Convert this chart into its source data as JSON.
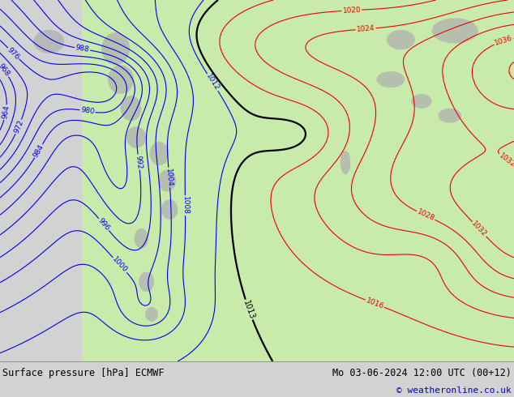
{
  "title_left": "Surface pressure [hPa] ECMWF",
  "title_right": "Mo 03-06-2024 12:00 UTC (00+12)",
  "copyright": "© weatheronline.co.uk",
  "bg_color": "#d2d2d2",
  "land_color": "#c8eaaa",
  "mountain_color": "#b0b0b0",
  "bar_color": "#d8d8d8",
  "blue_contour": "#0000ee",
  "red_contour": "#ee0000",
  "black_contour": "#000000",
  "title_color": "#000000",
  "copyright_color": "#0000cc",
  "title_fontsize": 8.5,
  "copyright_fontsize": 8.0,
  "label_fontsize": 6.5,
  "contour_interval": 4,
  "p_min": 960,
  "p_max": 1044,
  "p_1013": 1013
}
